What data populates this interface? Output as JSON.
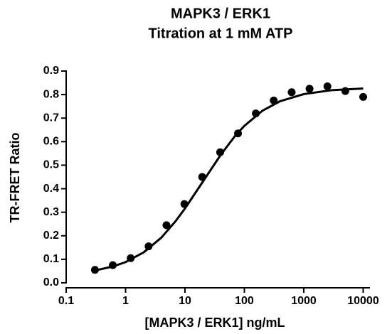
{
  "chart_data": {
    "type": "scatter",
    "title": "MAPK3 / ERK1",
    "subtitle": "Titration at 1 mM ATP",
    "x_label": "[MAPK3 / ERK1] ng/mL",
    "y_label": "TR-FRET Ratio",
    "x_scale": "log",
    "xlim": [
      0.1,
      13000
    ],
    "ylim": [
      0,
      0.9
    ],
    "xticks": [
      0.1,
      1,
      10,
      100,
      1000,
      10000
    ],
    "yticks": [
      {
        "value": 0,
        "label": "0.0"
      },
      0.1,
      0.2,
      0.3,
      0.4,
      0.5,
      0.6,
      0.7,
      0.8,
      0.9
    ],
    "series": [
      {
        "type": "scatter",
        "color": "#000000",
        "x": [
          0.305,
          0.61,
          1.22,
          2.44,
          4.88,
          9.77,
          19.5,
          39.1,
          78.1,
          156,
          312,
          625,
          1250,
          2500,
          5000,
          10000
        ],
        "values": [
          0.055,
          0.075,
          0.105,
          0.155,
          0.245,
          0.335,
          0.45,
          0.555,
          0.635,
          0.72,
          0.775,
          0.81,
          0.825,
          0.835,
          0.815,
          0.79
        ]
      },
      {
        "type": "line",
        "color": "#000000",
        "x": [
          0.3,
          0.6,
          1,
          2,
          4,
          7,
          10,
          20,
          40,
          70,
          100,
          200,
          400,
          1000,
          3000,
          10000
        ],
        "values": [
          0.052,
          0.069,
          0.088,
          0.129,
          0.192,
          0.263,
          0.316,
          0.43,
          0.544,
          0.625,
          0.667,
          0.731,
          0.772,
          0.802,
          0.819,
          0.826
        ]
      }
    ]
  }
}
